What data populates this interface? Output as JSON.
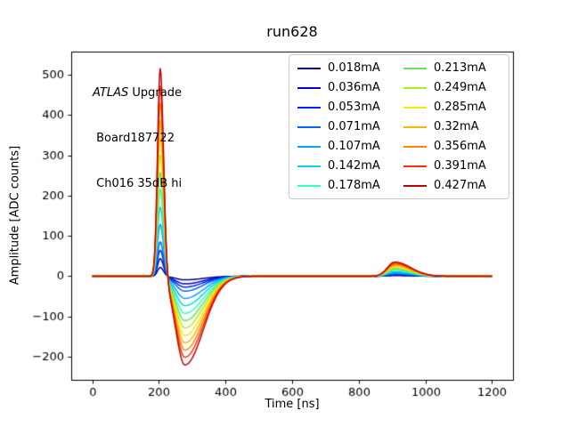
{
  "figure": {
    "window_background": "#ffffff"
  },
  "annotation": {
    "line1_italic": "ATLAS",
    "line1_rest": " Upgrade",
    "line2": " Board187722",
    "line3": " Ch016 35dB hi"
  },
  "chart_data": {
    "type": "line",
    "title": "run628",
    "xlabel": "Time [ns]",
    "ylabel": "Amplitude [ADC counts]",
    "xlim": [
      -63,
      1263
    ],
    "ylim": [
      -257,
      557
    ],
    "xticks": [
      0,
      200,
      400,
      600,
      800,
      1000,
      1200
    ],
    "yticks": [
      -200,
      -100,
      0,
      100,
      200,
      300,
      400,
      500
    ],
    "grid": false,
    "legend_position": "upper right",
    "legend_columns": 2,
    "annotation_lines": [
      "ATLAS Upgrade",
      "Board187722",
      "Ch016 35dB hi"
    ],
    "shape": {
      "baseline": 0,
      "peak_center": 204,
      "peak_sigma_left": 8,
      "peak_sigma_right": 10,
      "under_center": 278,
      "under_sigma_left": 27,
      "under_sigma_right": 55,
      "bump_center": 908,
      "bump_sigma_left": 22,
      "bump_sigma_right": 48
    },
    "series": [
      {
        "name": "0.018mA",
        "color": "#000080",
        "peak": 22,
        "undershoot": 9,
        "bump": 1.5
      },
      {
        "name": "0.036mA",
        "color": "#0000c8",
        "peak": 44,
        "undershoot": 19,
        "bump": 3
      },
      {
        "name": "0.053mA",
        "color": "#0020ff",
        "peak": 65,
        "undershoot": 27,
        "bump": 4.4
      },
      {
        "name": "0.071mA",
        "color": "#0064ff",
        "peak": 86,
        "undershoot": 37,
        "bump": 5.8
      },
      {
        "name": "0.107mA",
        "color": "#00a4ff",
        "peak": 130,
        "undershoot": 55,
        "bump": 8.8
      },
      {
        "name": "0.142mA",
        "color": "#00d8e0",
        "peak": 173,
        "undershoot": 73,
        "bump": 11.6
      },
      {
        "name": "0.178mA",
        "color": "#33ffc4",
        "peak": 217,
        "undershoot": 92,
        "bump": 14.6
      },
      {
        "name": "0.213mA",
        "color": "#62e662",
        "peak": 259,
        "undershoot": 110,
        "bump": 17.5
      },
      {
        "name": "0.249mA",
        "color": "#a8f218",
        "peak": 303,
        "undershoot": 128,
        "bump": 20.4
      },
      {
        "name": "0.285mA",
        "color": "#ffe600",
        "peak": 347,
        "undershoot": 147,
        "bump": 23.4
      },
      {
        "name": "0.32mA",
        "color": "#ffb400",
        "peak": 390,
        "undershoot": 165,
        "bump": 26.2
      },
      {
        "name": "0.356mA",
        "color": "#ff8200",
        "peak": 434,
        "undershoot": 183,
        "bump": 29.2
      },
      {
        "name": "0.391mA",
        "color": "#ff3000",
        "peak": 476,
        "undershoot": 201,
        "bump": 32
      },
      {
        "name": "0.427mA",
        "color": "#bf0000",
        "peak": 520,
        "undershoot": 220,
        "bump": 35
      }
    ]
  }
}
